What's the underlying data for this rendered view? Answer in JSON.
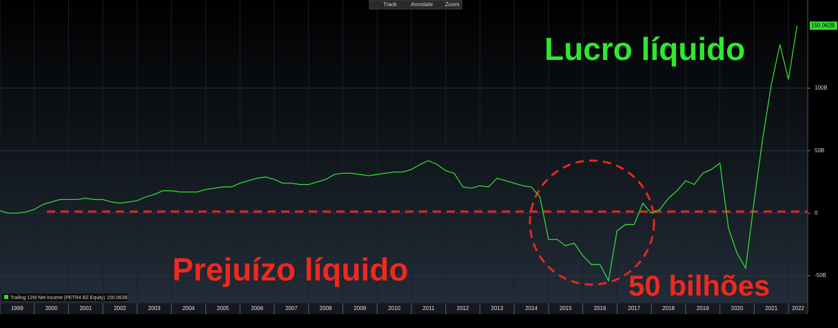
{
  "toolbar": [
    "Track",
    "Annotate",
    "Zoom"
  ],
  "chart_data": {
    "type": "line",
    "x": [
      1999.0,
      1999.25,
      1999.5,
      1999.75,
      2000.0,
      2000.25,
      2000.5,
      2000.75,
      2001.0,
      2001.25,
      2001.5,
      2001.75,
      2002.0,
      2002.25,
      2002.5,
      2002.75,
      2003.0,
      2003.25,
      2003.5,
      2003.75,
      2004.0,
      2004.25,
      2004.5,
      2004.75,
      2005.0,
      2005.25,
      2005.5,
      2005.75,
      2006.0,
      2006.25,
      2006.5,
      2006.75,
      2007.0,
      2007.25,
      2007.5,
      2007.75,
      2008.0,
      2008.25,
      2008.5,
      2008.75,
      2009.0,
      2009.25,
      2009.5,
      2009.75,
      2010.0,
      2010.25,
      2010.5,
      2010.75,
      2011.0,
      2011.25,
      2011.5,
      2011.75,
      2012.0,
      2012.25,
      2012.5,
      2012.75,
      2013.0,
      2013.25,
      2013.5,
      2013.75,
      2014.0,
      2014.25,
      2014.5,
      2014.75,
      2015.0,
      2015.25,
      2015.5,
      2015.75,
      2016.0,
      2016.25,
      2016.5,
      2016.75,
      2017.0,
      2017.25,
      2017.5,
      2017.75,
      2018.0,
      2018.25,
      2018.5,
      2018.75,
      2019.0,
      2019.25,
      2019.5,
      2019.75,
      2020.0,
      2020.25,
      2020.5,
      2020.75,
      2021.0,
      2021.25,
      2021.5,
      2021.75,
      2022.0,
      2022.25
    ],
    "series": [
      {
        "name": "Trailing 12M Net Income (PETR4 BZ Equity)",
        "color": "#33dd33",
        "values": [
          2,
          0,
          0,
          1,
          3,
          7,
          9,
          11,
          11,
          11,
          12,
          11,
          11,
          9,
          8,
          9,
          10,
          13,
          15,
          18,
          18,
          17,
          17,
          17,
          19,
          20,
          21,
          21,
          24,
          26,
          28,
          29,
          27,
          24,
          24,
          23,
          23,
          25,
          27,
          31,
          32,
          32,
          31,
          30,
          31,
          32,
          33,
          33,
          35,
          39,
          42,
          39,
          34,
          32,
          21,
          20,
          22,
          21,
          28,
          26,
          24,
          22,
          21,
          13,
          -21,
          -21,
          -26,
          -24,
          -34,
          -41,
          -41,
          -54,
          -14,
          -9,
          -9,
          8,
          0,
          3,
          12,
          18,
          26,
          23,
          32,
          35,
          40,
          -12,
          -32,
          -44,
          10,
          60,
          103,
          135,
          107,
          150.062
        ],
        "value_labels": [
          null,
          null,
          null,
          null,
          null,
          null,
          null,
          null,
          null,
          null,
          null,
          null,
          null,
          null,
          null,
          null,
          null,
          null,
          null,
          null,
          null,
          null,
          null,
          null,
          null,
          null,
          null,
          null,
          null,
          null,
          null,
          null,
          null,
          null,
          null,
          null,
          null,
          null,
          null,
          null,
          null,
          null,
          null,
          null,
          null,
          null,
          null,
          null,
          null,
          null,
          null,
          null,
          null,
          null,
          null,
          null,
          null,
          null,
          null,
          null,
          null,
          null,
          null,
          null,
          null,
          null,
          null,
          null,
          null,
          null,
          null,
          null,
          null,
          null,
          null,
          null,
          null,
          null,
          null,
          null,
          null,
          null,
          null,
          null,
          null,
          null,
          null,
          null,
          null,
          null,
          null,
          null,
          null,
          "150.062B"
        ]
      }
    ],
    "xlim": [
      1999,
      2022.56
    ],
    "xticks": [
      1999,
      2000,
      2001,
      2002,
      2003,
      2004,
      2005,
      2006,
      2007,
      2008,
      2009,
      2010,
      2011,
      2012,
      2013,
      2014,
      2015,
      2016,
      2017,
      2018,
      2019,
      2020,
      2021,
      2022
    ],
    "ylim": [
      -72,
      170.6
    ],
    "yticks": [
      {
        "value": -50,
        "label": "-50B"
      },
      0,
      {
        "value": 50,
        "label": "50B"
      },
      {
        "value": 100,
        "label": "100B"
      }
    ],
    "grid": true,
    "annotations": [
      "Lucro líquido",
      "Prejuízo líquido",
      "50 bilhões"
    ]
  }
}
